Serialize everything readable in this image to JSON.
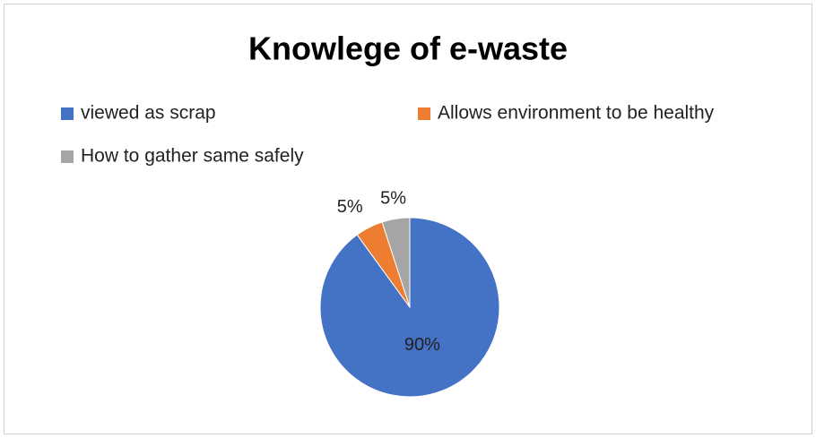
{
  "chart_data": {
    "type": "pie",
    "title": "Knowlege of e-waste",
    "categories": [
      "viewed as scrap",
      "Allows environment to be healthy",
      "How to gather same safely"
    ],
    "values": [
      90,
      5,
      5
    ],
    "value_labels": [
      "90%",
      "5%",
      "5%"
    ],
    "colors": [
      "#4472c4",
      "#ed7d31",
      "#a5a5a5"
    ],
    "legend": "top"
  }
}
